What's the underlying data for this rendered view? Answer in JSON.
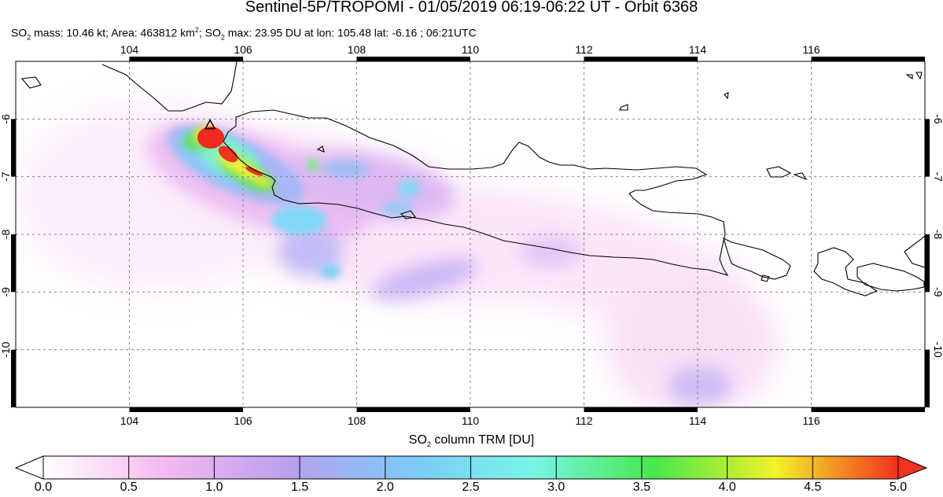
{
  "header": {
    "title": "Sentinel-5P/TROPOMI - 01/05/2019 06:19-06:22 UT - Orbit 6368",
    "stats": {
      "p1": "SO",
      "s1": "2",
      "p2": " mass: 10.46 kt; Area: 463812 km",
      "sup": "2",
      "p3": "; SO",
      "s2": "2",
      "p4": " max: 23.95 DU at lon: 105.48 lat: -6.16 ; 06:21UTC"
    }
  },
  "map": {
    "lon_range": [
      102,
      118
    ],
    "lat_range": [
      -11,
      -5
    ],
    "lon_ticks": [
      "104",
      "106",
      "108",
      "110",
      "112",
      "114",
      "116"
    ],
    "lat_ticks": [
      "-6",
      "-7",
      "-8",
      "-9",
      "-10"
    ],
    "volcano_marker": {
      "lon": 105.42,
      "lat": -6.1,
      "symbol": "triangle"
    }
  },
  "colorbar": {
    "label_prefix": "SO",
    "label_sub": "2",
    "label_suffix": " column TRM [DU]",
    "range": [
      0,
      5
    ],
    "ticks": [
      "0.0",
      "0.5",
      "1.0",
      "1.5",
      "2.0",
      "2.5",
      "3.0",
      "3.5",
      "4.0",
      "4.5",
      "5.0"
    ],
    "colors": [
      "#ffffff",
      "#f5b8f0",
      "#b9a0ee",
      "#7ec8f8",
      "#78f5e8",
      "#46e84c",
      "#f2f228",
      "#f3311f"
    ]
  }
}
